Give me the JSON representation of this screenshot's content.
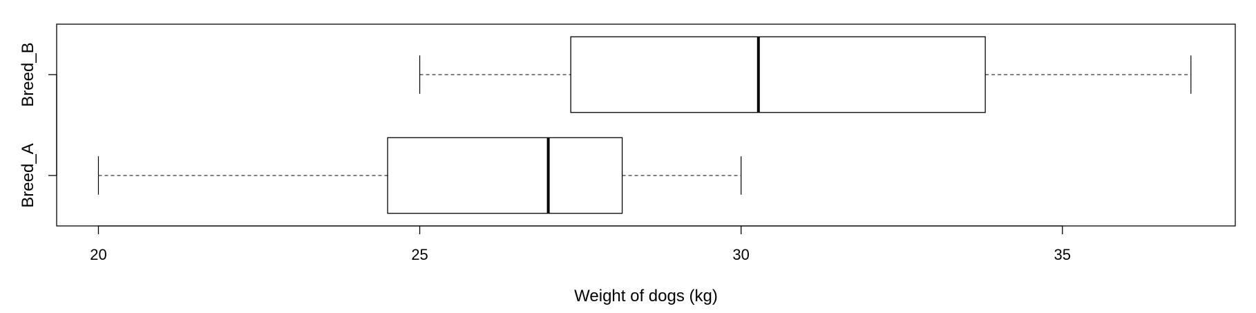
{
  "chart_data": {
    "type": "boxplot",
    "orientation": "horizontal",
    "xlabel": "Weight of dogs (kg)",
    "xlim": [
      19.35,
      37.69
    ],
    "x_ticks": [
      20,
      25,
      30,
      35
    ],
    "x_tick_labels": [
      "20",
      "25",
      "30",
      "35"
    ],
    "grid": false,
    "legend": false,
    "categories": [
      "Breed_A",
      "Breed_B"
    ],
    "series": [
      {
        "category": "Breed_A",
        "min": 20.0,
        "q1": 24.5,
        "median": 27.0,
        "q3": 28.15,
        "max": 30.0
      },
      {
        "category": "Breed_B",
        "min": 25.0,
        "q1": 27.35,
        "median": 30.27,
        "q3": 33.8,
        "max": 37.0
      }
    ]
  }
}
